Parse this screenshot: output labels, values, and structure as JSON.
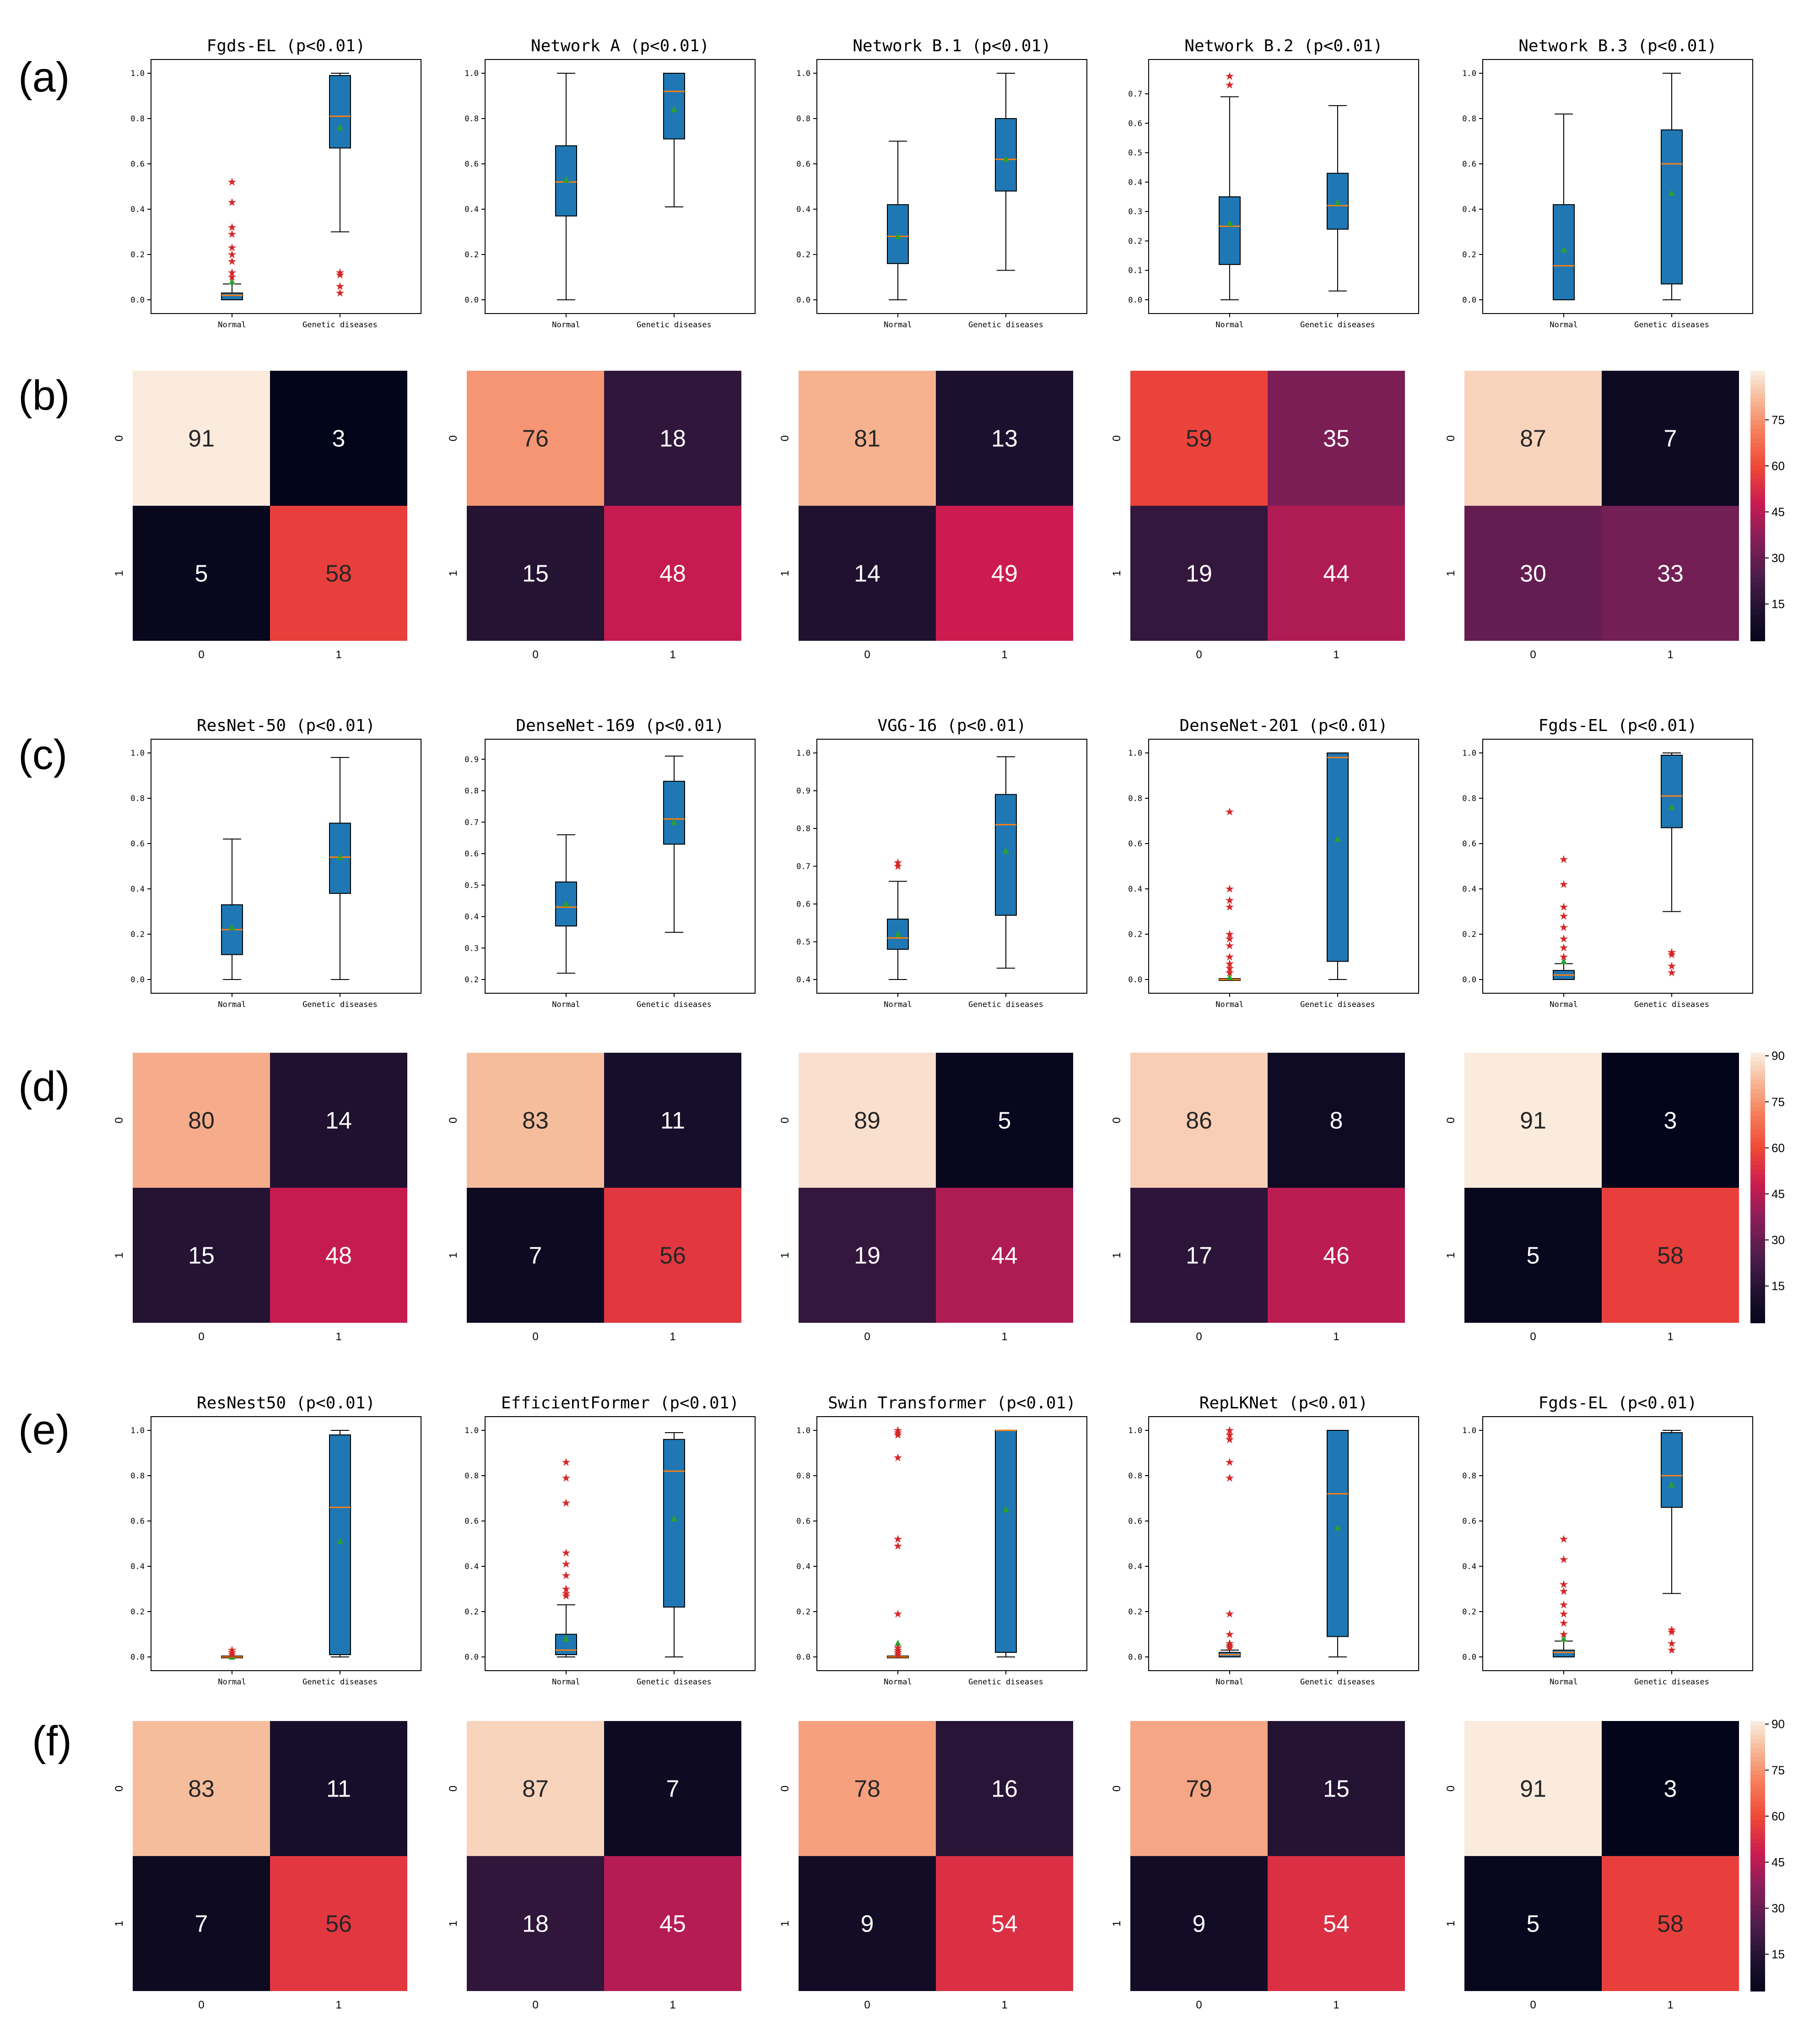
{
  "row_labels": [
    "(a)",
    "(b)",
    "(c)",
    "(d)",
    "(e)",
    "(f)"
  ],
  "colors": {
    "box_fill": "#1f77b4",
    "median": "#ff7f0e",
    "mean": "#2ca02c",
    "outlier": "#d62728",
    "axis": "#000000"
  },
  "chart_data": [
    {
      "type": "box",
      "row": "(a)",
      "categories": [
        "Normal",
        "Genetic diseases"
      ],
      "panels": [
        {
          "title": "Fgds-EL (p<0.01)",
          "ylim": [
            0,
            1.0
          ],
          "yticks": [
            0.0,
            0.2,
            0.4,
            0.6,
            0.8,
            1.0
          ],
          "boxes": [
            {
              "whislo": 0.0,
              "q1": 0.0,
              "med": 0.02,
              "q3": 0.03,
              "whishi": 0.07,
              "mean": 0.08,
              "fliers": [
                0.52,
                0.43,
                0.32,
                0.29,
                0.23,
                0.2,
                0.17,
                0.12,
                0.1
              ]
            },
            {
              "whislo": 0.3,
              "q1": 0.67,
              "med": 0.81,
              "q3": 0.99,
              "whishi": 1.0,
              "mean": 0.76,
              "fliers": [
                0.12,
                0.11,
                0.06,
                0.03
              ]
            }
          ]
        },
        {
          "title": "Network A (p<0.01)",
          "ylim": [
            0,
            1.0
          ],
          "yticks": [
            0.0,
            0.2,
            0.4,
            0.6,
            0.8,
            1.0
          ],
          "boxes": [
            {
              "whislo": 0.0,
              "q1": 0.37,
              "med": 0.52,
              "q3": 0.68,
              "whishi": 1.0,
              "mean": 0.53,
              "fliers": []
            },
            {
              "whislo": 0.41,
              "q1": 0.71,
              "med": 0.92,
              "q3": 1.0,
              "whishi": 1.0,
              "mean": 0.84,
              "fliers": []
            }
          ]
        },
        {
          "title": "Network B.1 (p<0.01)",
          "ylim": [
            0,
            1.0
          ],
          "yticks": [
            0.0,
            0.2,
            0.4,
            0.6,
            0.8,
            1.0
          ],
          "boxes": [
            {
              "whislo": 0.0,
              "q1": 0.16,
              "med": 0.28,
              "q3": 0.42,
              "whishi": 0.7,
              "mean": 0.28,
              "fliers": []
            },
            {
              "whislo": 0.13,
              "q1": 0.48,
              "med": 0.62,
              "q3": 0.8,
              "whishi": 1.0,
              "mean": 0.62,
              "fliers": []
            }
          ]
        },
        {
          "title": "Network B.2 (p<0.01)",
          "ylim": [
            0,
            0.77
          ],
          "yticks": [
            0.0,
            0.1,
            0.2,
            0.3,
            0.4,
            0.5,
            0.6,
            0.7
          ],
          "boxes": [
            {
              "whislo": 0.0,
              "q1": 0.12,
              "med": 0.25,
              "q3": 0.35,
              "whishi": 0.69,
              "mean": 0.26,
              "fliers": [
                0.76,
                0.73
              ]
            },
            {
              "whislo": 0.03,
              "q1": 0.24,
              "med": 0.32,
              "q3": 0.43,
              "whishi": 0.66,
              "mean": 0.33,
              "fliers": []
            }
          ]
        },
        {
          "title": "Network B.3 (p<0.01)",
          "ylim": [
            0,
            1.0
          ],
          "yticks": [
            0.0,
            0.2,
            0.4,
            0.6,
            0.8,
            1.0
          ],
          "boxes": [
            {
              "whislo": 0.0,
              "q1": 0.0,
              "med": 0.15,
              "q3": 0.42,
              "whishi": 0.82,
              "mean": 0.22,
              "fliers": []
            },
            {
              "whislo": 0.0,
              "q1": 0.07,
              "med": 0.6,
              "q3": 0.75,
              "whishi": 1.0,
              "mean": 0.47,
              "fliers": []
            }
          ]
        }
      ]
    },
    {
      "type": "heatmap",
      "row": "(b)",
      "xticks": [
        "0",
        "1"
      ],
      "yticks": [
        "0",
        "1"
      ],
      "colorbar": {
        "min": 3,
        "max": 91,
        "ticks": [
          15,
          30,
          45,
          60,
          75
        ]
      },
      "panels": [
        {
          "matrix": [
            [
              91,
              3
            ],
            [
              5,
              58
            ]
          ]
        },
        {
          "matrix": [
            [
              76,
              18
            ],
            [
              15,
              48
            ]
          ]
        },
        {
          "matrix": [
            [
              81,
              13
            ],
            [
              14,
              49
            ]
          ]
        },
        {
          "matrix": [
            [
              59,
              35
            ],
            [
              19,
              44
            ]
          ]
        },
        {
          "matrix": [
            [
              87,
              7
            ],
            [
              30,
              33
            ]
          ]
        }
      ]
    },
    {
      "type": "box",
      "row": "(c)",
      "categories": [
        "Normal",
        "Genetic diseases"
      ],
      "panels": [
        {
          "title": "ResNet-50 (p<0.01)",
          "ylim": [
            0,
            1.0
          ],
          "yticks": [
            0.0,
            0.2,
            0.4,
            0.6,
            0.8,
            1.0
          ],
          "boxes": [
            {
              "whislo": 0.0,
              "q1": 0.11,
              "med": 0.22,
              "q3": 0.33,
              "whishi": 0.62,
              "mean": 0.23,
              "fliers": []
            },
            {
              "whislo": 0.0,
              "q1": 0.38,
              "med": 0.54,
              "q3": 0.69,
              "whishi": 0.98,
              "mean": 0.54,
              "fliers": []
            }
          ]
        },
        {
          "title": "DenseNet-169 (p<0.01)",
          "ylim": [
            0.2,
            0.92
          ],
          "yticks": [
            0.2,
            0.3,
            0.4,
            0.5,
            0.6,
            0.7,
            0.8,
            0.9
          ],
          "boxes": [
            {
              "whislo": 0.22,
              "q1": 0.37,
              "med": 0.43,
              "q3": 0.51,
              "whishi": 0.66,
              "mean": 0.44,
              "fliers": []
            },
            {
              "whislo": 0.35,
              "q1": 0.63,
              "med": 0.71,
              "q3": 0.83,
              "whishi": 0.91,
              "mean": 0.7,
              "fliers": []
            }
          ]
        },
        {
          "title": "VGG-16 (p<0.01)",
          "ylim": [
            0.4,
            1.0
          ],
          "yticks": [
            0.4,
            0.5,
            0.6,
            0.7,
            0.8,
            0.9,
            1.0
          ],
          "boxes": [
            {
              "whislo": 0.4,
              "q1": 0.48,
              "med": 0.51,
              "q3": 0.56,
              "whishi": 0.66,
              "mean": 0.52,
              "fliers": [
                0.71,
                0.7
              ]
            },
            {
              "whislo": 0.43,
              "q1": 0.57,
              "med": 0.81,
              "q3": 0.89,
              "whishi": 0.99,
              "mean": 0.74,
              "fliers": []
            }
          ]
        },
        {
          "title": "DenseNet-201 (p<0.01)",
          "ylim": [
            0,
            1.0
          ],
          "yticks": [
            0.0,
            0.2,
            0.4,
            0.6,
            0.8,
            1.0
          ],
          "boxes": [
            {
              "whislo": 0.0,
              "q1": 0.0,
              "med": 0.0,
              "q3": 0.0,
              "whishi": 0.0,
              "mean": 0.01,
              "fliers": [
                0.74,
                0.4,
                0.35,
                0.32,
                0.2,
                0.18,
                0.15,
                0.1,
                0.07,
                0.05,
                0.03
              ]
            },
            {
              "whislo": 0.0,
              "q1": 0.08,
              "med": 0.98,
              "q3": 1.0,
              "whishi": 1.0,
              "mean": 0.62,
              "fliers": []
            }
          ]
        },
        {
          "title": "Fgds-EL (p<0.01)",
          "ylim": [
            0,
            1.0
          ],
          "yticks": [
            0.0,
            0.2,
            0.4,
            0.6,
            0.8,
            1.0
          ],
          "boxes": [
            {
              "whislo": 0.0,
              "q1": 0.0,
              "med": 0.02,
              "q3": 0.04,
              "whishi": 0.07,
              "mean": 0.08,
              "fliers": [
                0.53,
                0.42,
                0.32,
                0.28,
                0.23,
                0.18,
                0.14,
                0.1
              ]
            },
            {
              "whislo": 0.3,
              "q1": 0.67,
              "med": 0.81,
              "q3": 0.99,
              "whishi": 1.0,
              "mean": 0.76,
              "fliers": [
                0.12,
                0.11,
                0.06,
                0.03
              ]
            }
          ]
        }
      ]
    },
    {
      "type": "heatmap",
      "row": "(d)",
      "xticks": [
        "0",
        "1"
      ],
      "yticks": [
        "0",
        "1"
      ],
      "colorbar": {
        "min": 3,
        "max": 91,
        "ticks": [
          15,
          30,
          45,
          60,
          75,
          90
        ]
      },
      "panels": [
        {
          "matrix": [
            [
              80,
              14
            ],
            [
              15,
              48
            ]
          ]
        },
        {
          "matrix": [
            [
              83,
              11
            ],
            [
              7,
              56
            ]
          ]
        },
        {
          "matrix": [
            [
              89,
              5
            ],
            [
              19,
              44
            ]
          ]
        },
        {
          "matrix": [
            [
              86,
              8
            ],
            [
              17,
              46
            ]
          ]
        },
        {
          "matrix": [
            [
              91,
              3
            ],
            [
              5,
              58
            ]
          ]
        }
      ]
    },
    {
      "type": "box",
      "row": "(e)",
      "categories": [
        "Normal",
        "Genetic diseases"
      ],
      "panels": [
        {
          "title": "ResNest50 (p<0.01)",
          "ylim": [
            0,
            1.0
          ],
          "yticks": [
            0.0,
            0.2,
            0.4,
            0.6,
            0.8,
            1.0
          ],
          "boxes": [
            {
              "whislo": 0.0,
              "q1": 0.0,
              "med": 0.0,
              "q3": 0.0,
              "whishi": 0.0,
              "mean": 0.0,
              "fliers": [
                0.03,
                0.02,
                0.01
              ]
            },
            {
              "whislo": 0.0,
              "q1": 0.01,
              "med": 0.66,
              "q3": 0.98,
              "whishi": 1.0,
              "mean": 0.51,
              "fliers": []
            }
          ]
        },
        {
          "title": "EfficientFormer (p<0.01)",
          "ylim": [
            0,
            1.0
          ],
          "yticks": [
            0.0,
            0.2,
            0.4,
            0.6,
            0.8,
            1.0
          ],
          "boxes": [
            {
              "whislo": 0.0,
              "q1": 0.01,
              "med": 0.03,
              "q3": 0.1,
              "whishi": 0.23,
              "mean": 0.08,
              "fliers": [
                0.86,
                0.79,
                0.68,
                0.46,
                0.41,
                0.36,
                0.3,
                0.28,
                0.27
              ]
            },
            {
              "whislo": 0.0,
              "q1": 0.22,
              "med": 0.82,
              "q3": 0.96,
              "whishi": 0.99,
              "mean": 0.61,
              "fliers": []
            }
          ]
        },
        {
          "title": "Swin Transformer (p<0.01)",
          "ylim": [
            0,
            1.0
          ],
          "yticks": [
            0.0,
            0.2,
            0.4,
            0.6,
            0.8,
            1.0
          ],
          "boxes": [
            {
              "whislo": 0.0,
              "q1": 0.0,
              "med": 0.0,
              "q3": 0.0,
              "whishi": 0.0,
              "mean": 0.06,
              "fliers": [
                1.0,
                0.99,
                0.98,
                0.88,
                0.52,
                0.49,
                0.19,
                0.04,
                0.03,
                0.02,
                0.01
              ]
            },
            {
              "whislo": 0.0,
              "q1": 0.02,
              "med": 1.0,
              "q3": 1.0,
              "whishi": 1.0,
              "mean": 0.65,
              "fliers": []
            }
          ]
        },
        {
          "title": "RepLKNet (p<0.01)",
          "ylim": [
            0,
            1.0
          ],
          "yticks": [
            0.0,
            0.2,
            0.4,
            0.6,
            0.8,
            1.0
          ],
          "boxes": [
            {
              "whislo": 0.0,
              "q1": 0.0,
              "med": 0.01,
              "q3": 0.02,
              "whishi": 0.03,
              "mean": 0.06,
              "fliers": [
                1.0,
                0.98,
                0.96,
                0.86,
                0.79,
                0.19,
                0.1,
                0.06,
                0.05,
                0.04
              ]
            },
            {
              "whislo": 0.0,
              "q1": 0.09,
              "med": 0.72,
              "q3": 1.0,
              "whishi": 1.0,
              "mean": 0.57,
              "fliers": []
            }
          ]
        },
        {
          "title": "Fgds-EL (p<0.01)",
          "ylim": [
            0,
            1.0
          ],
          "yticks": [
            0.0,
            0.2,
            0.4,
            0.6,
            0.8,
            1.0
          ],
          "boxes": [
            {
              "whislo": 0.0,
              "q1": 0.0,
              "med": 0.02,
              "q3": 0.03,
              "whishi": 0.07,
              "mean": 0.08,
              "fliers": [
                0.52,
                0.43,
                0.32,
                0.29,
                0.23,
                0.19,
                0.15,
                0.1
              ]
            },
            {
              "whislo": 0.28,
              "q1": 0.66,
              "med": 0.8,
              "q3": 0.99,
              "whishi": 1.0,
              "mean": 0.76,
              "fliers": [
                0.12,
                0.11,
                0.06,
                0.03
              ]
            }
          ]
        }
      ]
    },
    {
      "type": "heatmap",
      "row": "(f)",
      "xticks": [
        "0",
        "1"
      ],
      "yticks": [
        "0",
        "1"
      ],
      "colorbar": {
        "min": 3,
        "max": 91,
        "ticks": [
          15,
          30,
          45,
          60,
          75,
          90
        ]
      },
      "panels": [
        {
          "matrix": [
            [
              83,
              11
            ],
            [
              7,
              56
            ]
          ]
        },
        {
          "matrix": [
            [
              87,
              7
            ],
            [
              18,
              45
            ]
          ]
        },
        {
          "matrix": [
            [
              78,
              16
            ],
            [
              9,
              54
            ]
          ]
        },
        {
          "matrix": [
            [
              79,
              15
            ],
            [
              9,
              54
            ]
          ]
        },
        {
          "matrix": [
            [
              91,
              3
            ],
            [
              5,
              58
            ]
          ]
        }
      ]
    }
  ]
}
